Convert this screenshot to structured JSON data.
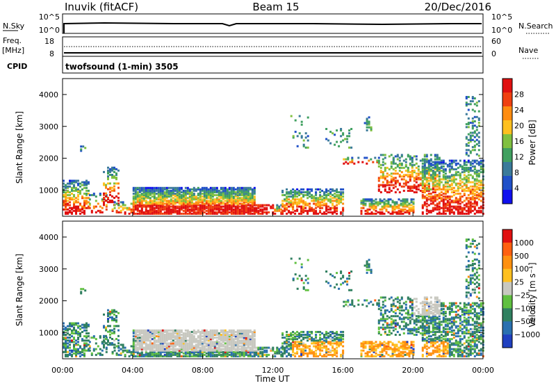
{
  "header": {
    "station": "Inuvik (fitACF)",
    "beam": "Beam 15",
    "date": "20/Dec/2016"
  },
  "top_panel": {
    "left_label": "N.Sky",
    "left_ticks": [
      "10^5",
      "10^0"
    ],
    "right_ticks": [
      "10^5",
      "10^0"
    ],
    "right_label": "N.Search"
  },
  "freq_panel": {
    "left_label_1": "Freq.",
    "left_label_2": "[MHz]",
    "left_ticks": [
      "18",
      "8"
    ],
    "right_ticks": [
      "60",
      "0"
    ],
    "right_label": "Nave",
    "cpid_label": "CPID",
    "cpid_text": "twofsound (1-min) 3505"
  },
  "x_axis": {
    "title": "Time UT",
    "ticks": [
      "00:00",
      "04:00",
      "08:00",
      "12:00",
      "16:00",
      "20:00",
      "00:00"
    ]
  },
  "y_axis_ticks": [
    "4000",
    "3000",
    "2000",
    "1000"
  ],
  "chart_data": [
    {
      "type": "heatmap",
      "ylabel": "Slant Range [km]",
      "xlabel": "Time UT",
      "xlim_hours": [
        0,
        24
      ],
      "ylim_km": [
        180,
        4500
      ],
      "colorbar": {
        "label": "Power [dB]",
        "ticks": [
          "28",
          "24",
          "20",
          "16",
          "12",
          "8",
          "4"
        ],
        "range": [
          0,
          30
        ],
        "colors": [
          "#1010ee",
          "#2050c8",
          "#3a7a9a",
          "#40a060",
          "#80c040",
          "#ffc020",
          "#ff8c10",
          "#f04010",
          "#e01010"
        ]
      }
    },
    {
      "type": "heatmap",
      "ylabel": "Slant Range [km]",
      "xlabel": "Time UT",
      "xlim_hours": [
        0,
        24
      ],
      "ylim_km": [
        180,
        4500
      ],
      "colorbar": {
        "label": "Velocity [m s⁻¹]",
        "ticks": [
          "1000",
          "500",
          "100",
          "25",
          "−25",
          "−100",
          "−500",
          "−1000"
        ],
        "range": [
          -1000,
          1000
        ],
        "colors": [
          "#2040c0",
          "#2a70b0",
          "#308060",
          "#60c040",
          "#c8c8c0",
          "#ffc020",
          "#ff9010",
          "#ff6010",
          "#e01010"
        ]
      }
    }
  ]
}
